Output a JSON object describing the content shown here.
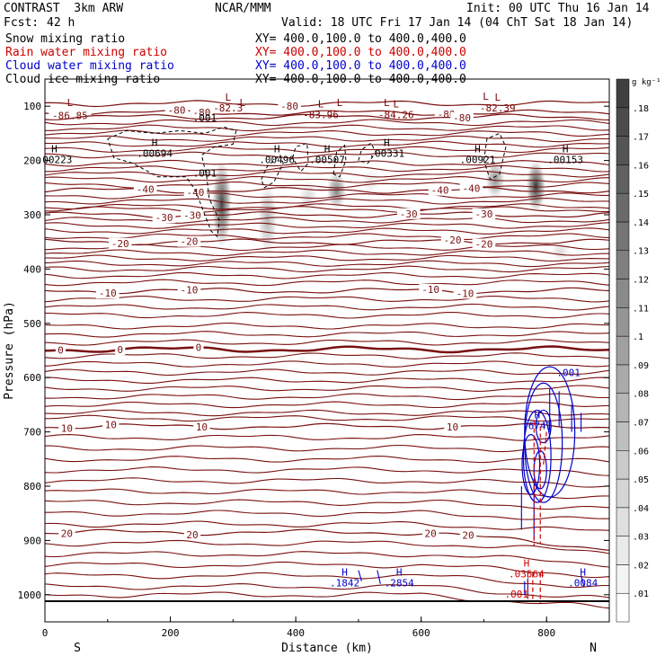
{
  "header": {
    "model": "CONTRAST  3km ARW",
    "center": "NCAR/MMM",
    "init": "Init: 00 UTC Thu 16 Jan 14",
    "fcst_label": "Fcst:",
    "fcst_value": "42 h",
    "valid": "Valid: 18 UTC Fri 17 Jan 14 (04 ChT Sat 18 Jan 14)",
    "fields": [
      {
        "name": "Snow mixing ratio",
        "color": "#000000"
      },
      {
        "name": "Rain water mixing ratio",
        "color": "#cc0000"
      },
      {
        "name": "Cloud water mixing ratio",
        "color": "#0000cc"
      },
      {
        "name": "Cloud ice mixing ratio",
        "color": "#000000"
      }
    ],
    "xy": "XY= 400.0,100.0 to 400.0,400.0"
  },
  "chart_data": {
    "type": "heatmap",
    "title": "",
    "xlabel": "Distance (km)",
    "ylabel": "Pressure (hPa)",
    "xlim": [
      0,
      900
    ],
    "ylim": [
      1050,
      50
    ],
    "yscale": "linear",
    "xticks": [
      0,
      200,
      400,
      600,
      800
    ],
    "yticks": [
      100,
      200,
      300,
      400,
      500,
      600,
      700,
      800,
      900,
      1000
    ],
    "endpoints": {
      "left": "S",
      "right": "N"
    },
    "colorbar": {
      "unit": "g kg⁻¹",
      "ticks": [
        ".01",
        ".02",
        ".03",
        ".04",
        ".05",
        ".06",
        ".07",
        ".08",
        ".09",
        ".1",
        ".11",
        ".12",
        ".13",
        ".14",
        ".15",
        ".16",
        ".17",
        ".18"
      ],
      "fill_color": "#404040"
    },
    "temperature_contours": [
      {
        "value": -80,
        "p": 95,
        "labels": [
          {
            "x": 390,
            "text": "-80"
          }
        ]
      },
      {
        "value": -80,
        "p": 112,
        "labels": [
          {
            "x": 40,
            "text": "-86.85"
          },
          {
            "x": 210,
            "text": "-80"
          },
          {
            "x": 250,
            "text": "-80"
          },
          {
            "x": 640,
            "text": "-80"
          }
        ]
      },
      {
        "value": -80,
        "p": 120,
        "labels": [
          {
            "x": 665,
            "text": "-80"
          }
        ]
      },
      {
        "value": -40,
        "p": 255,
        "labels": [
          {
            "x": 160,
            "text": "-40"
          },
          {
            "x": 240,
            "text": "-40"
          },
          {
            "x": 630,
            "text": "-40"
          },
          {
            "x": 680,
            "text": "-40"
          }
        ]
      },
      {
        "value": -30,
        "p": 300,
        "labels": [
          {
            "x": 190,
            "text": "-30"
          },
          {
            "x": 235,
            "text": "-30"
          },
          {
            "x": 580,
            "text": "-30"
          },
          {
            "x": 700,
            "text": "-30"
          }
        ]
      },
      {
        "value": -20,
        "p": 350,
        "labels": [
          {
            "x": 120,
            "text": "-20"
          },
          {
            "x": 230,
            "text": "-20"
          },
          {
            "x": 650,
            "text": "-20"
          },
          {
            "x": 700,
            "text": "-20"
          }
        ]
      },
      {
        "value": -10,
        "p": 440,
        "labels": [
          {
            "x": 100,
            "text": "-10"
          },
          {
            "x": 230,
            "text": "-10"
          },
          {
            "x": 615,
            "text": "-10"
          },
          {
            "x": 670,
            "text": "-10"
          }
        ]
      },
      {
        "value": 0,
        "p": 548,
        "labels": [
          {
            "x": 25,
            "text": "0"
          },
          {
            "x": 120,
            "text": "0"
          },
          {
            "x": 245,
            "text": "0"
          }
        ]
      },
      {
        "value": 10,
        "p": 690,
        "labels": [
          {
            "x": 35,
            "text": "10"
          },
          {
            "x": 105,
            "text": "10"
          },
          {
            "x": 250,
            "text": "10"
          },
          {
            "x": 650,
            "text": "10"
          }
        ]
      },
      {
        "value": 20,
        "p": 885,
        "labels": [
          {
            "x": 35,
            "text": "20"
          },
          {
            "x": 235,
            "text": "20"
          },
          {
            "x": 615,
            "text": "20"
          },
          {
            "x": 675,
            "text": "20"
          }
        ]
      }
    ],
    "maxima": [
      {
        "type": "L",
        "x": 40,
        "p": 100,
        "label": "",
        "color": "#7a0000"
      },
      {
        "type": "L",
        "x": 315,
        "p": 100,
        "label": "",
        "color": "#7a0000"
      },
      {
        "type": "L",
        "x": 470,
        "p": 100,
        "label": "",
        "color": "#7a0000"
      },
      {
        "type": "L",
        "x": 545,
        "p": 100,
        "label": "",
        "color": "#7a0000"
      },
      {
        "type": "L",
        "x": 703,
        "p": 88,
        "label": "",
        "color": "#7a0000"
      },
      {
        "type": "L",
        "x": 292,
        "p": 100,
        "label": "-82.3",
        "color": "#7a0000"
      },
      {
        "type": "L",
        "x": 440,
        "p": 112,
        "label": "-83.96",
        "color": "#7a0000"
      },
      {
        "type": "L",
        "x": 560,
        "p": 112,
        "label": "-84.26",
        "color": "#7a0000"
      },
      {
        "type": "L",
        "x": 722,
        "p": 100,
        "label": "-82.39",
        "color": "#7a0000"
      },
      {
        "type": "H",
        "x": 15,
        "p": 195,
        "label": ".00223",
        "color": "#000000"
      },
      {
        "type": "H",
        "x": 175,
        "p": 183,
        "label": ".00694",
        "color": "#000000"
      },
      {
        "type": "H",
        "x": 370,
        "p": 195,
        "label": ".00496",
        "color": "#000000"
      },
      {
        "type": "H",
        "x": 450,
        "p": 195,
        "label": ".00507",
        "color": "#000000"
      },
      {
        "type": "H",
        "x": 545,
        "p": 183,
        "label": ".00331",
        "color": "#000000"
      },
      {
        "type": "H",
        "x": 690,
        "p": 195,
        "label": ".00921",
        "color": "#000000"
      },
      {
        "type": "H",
        "x": 830,
        "p": 195,
        "label": ".00153",
        "color": "#000000"
      },
      {
        "type": "H",
        "x": 478,
        "p": 975,
        "label": ".1842",
        "color": "#0000cc"
      },
      {
        "type": "H",
        "x": 565,
        "p": 975,
        "label": ".2854",
        "color": "#0000cc"
      },
      {
        "type": "H",
        "x": 858,
        "p": 975,
        "label": ".0084",
        "color": "#0000cc"
      },
      {
        "type": "H",
        "x": 785,
        "p": 685,
        "label": ".6741",
        "color": "#0000cc"
      },
      {
        "type": "H",
        "x": 768,
        "p": 958,
        "label": ".03564",
        "color": "#cc0000"
      }
    ],
    "contour_labels": [
      {
        "x": 255,
        "p": 230,
        "text": ".001",
        "color": "#000000"
      },
      {
        "x": 255,
        "p": 128,
        "text": ".001",
        "color": "#000000"
      },
      {
        "x": 835,
        "p": 597,
        "text": ".001",
        "color": "#0000cc"
      },
      {
        "x": 752,
        "p": 1005,
        "text": ".001",
        "color": "#cc0000"
      }
    ],
    "snow_shading": [
      {
        "x": 282,
        "p_top": 200,
        "p_bot": 360,
        "peak": 0.15
      },
      {
        "x": 355,
        "p_top": 240,
        "p_bot": 375,
        "peak": 0.06
      },
      {
        "x": 420,
        "p_top": 235,
        "p_bot": 300,
        "peak": 0.03
      },
      {
        "x": 465,
        "p_top": 220,
        "p_bot": 290,
        "peak": 0.1
      },
      {
        "x": 520,
        "p_top": 215,
        "p_bot": 260,
        "peak": 0.02
      },
      {
        "x": 718,
        "p_top": 200,
        "p_bot": 270,
        "peak": 0.09
      },
      {
        "x": 783,
        "p_top": 200,
        "p_bot": 295,
        "peak": 0.16
      },
      {
        "x": 822,
        "p_top": 350,
        "p_bot": 385,
        "peak": 0.03
      }
    ]
  }
}
